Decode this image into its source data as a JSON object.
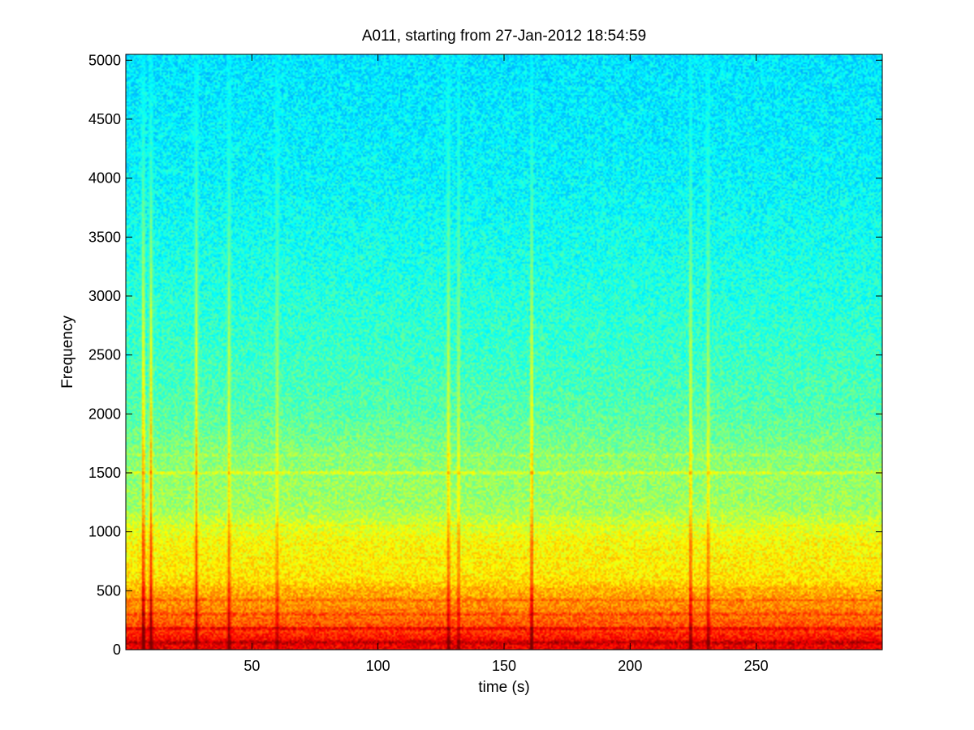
{
  "chart_data": {
    "type": "heatmap",
    "title": "A011, starting from 27-Jan-2012 18:54:59",
    "xlabel": "time (s)",
    "ylabel": "Frequency",
    "xlim": [
      0,
      300
    ],
    "ylim": [
      0,
      5050
    ],
    "x_ticks": [
      50,
      100,
      150,
      200,
      250
    ],
    "x_tick_labels": [
      "50",
      "100",
      "150",
      "200",
      "250"
    ],
    "y_ticks": [
      0,
      500,
      1000,
      1500,
      2000,
      2500,
      3000,
      3500,
      4000,
      4500,
      5000
    ],
    "y_tick_labels": [
      "0",
      "500",
      "1000",
      "1500",
      "2000",
      "2500",
      "3000",
      "3500",
      "4000",
      "4500",
      "5000"
    ],
    "colormap": "jet",
    "grid": false,
    "legend": "none",
    "colors": {
      "background": "#ffffff",
      "axis": "#000000"
    },
    "intensity_profile": {
      "frequency": [
        0,
        100,
        200,
        300,
        400,
        500,
        600,
        700,
        800,
        900,
        1000,
        1200,
        1500,
        1700,
        2000,
        2500,
        3000,
        3500,
        4000,
        4500,
        5050
      ],
      "level": [
        0.9,
        0.86,
        0.8,
        0.76,
        0.73,
        0.7,
        0.65,
        0.64,
        0.63,
        0.63,
        0.6,
        0.53,
        0.52,
        0.5,
        0.46,
        0.43,
        0.41,
        0.39,
        0.37,
        0.36,
        0.35
      ]
    },
    "horizontal_bands": [
      {
        "frequency": 60,
        "level": 0.95
      },
      {
        "frequency": 180,
        "level": 0.9
      },
      {
        "frequency": 300,
        "level": 0.82
      },
      {
        "frequency": 420,
        "level": 0.78
      },
      {
        "frequency": 520,
        "level": 0.72
      },
      {
        "frequency": 780,
        "level": 0.66
      },
      {
        "frequency": 1050,
        "level": 0.62
      },
      {
        "frequency": 1500,
        "level": 0.6
      },
      {
        "frequency": 1650,
        "level": 0.55
      }
    ],
    "vertical_events": [
      {
        "time": 7,
        "level": 0.66
      },
      {
        "time": 10,
        "level": 0.62
      },
      {
        "time": 28,
        "level": 0.6
      },
      {
        "time": 41,
        "level": 0.57
      },
      {
        "time": 60,
        "level": 0.54
      },
      {
        "time": 128,
        "level": 0.58
      },
      {
        "time": 132,
        "level": 0.55
      },
      {
        "time": 161,
        "level": 0.62
      },
      {
        "time": 224,
        "level": 0.6
      },
      {
        "time": 231,
        "level": 0.56
      }
    ]
  }
}
